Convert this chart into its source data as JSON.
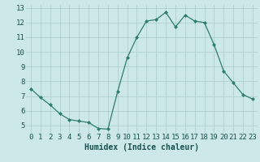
{
  "x": [
    0,
    1,
    2,
    3,
    4,
    5,
    6,
    7,
    8,
    9,
    10,
    11,
    12,
    13,
    14,
    15,
    16,
    17,
    18,
    19,
    20,
    21,
    22,
    23
  ],
  "y": [
    7.5,
    6.9,
    6.4,
    5.8,
    5.4,
    5.3,
    5.2,
    4.8,
    4.75,
    7.3,
    9.6,
    11.0,
    12.1,
    12.2,
    12.7,
    11.7,
    12.5,
    12.1,
    12.0,
    10.5,
    8.7,
    7.9,
    7.1,
    6.8
  ],
  "line_color": "#2e7d6e",
  "marker": "D",
  "marker_size": 2.0,
  "bg_color": "#cce8e8",
  "grid_color": "#aacccc",
  "xlabel": "Humidex (Indice chaleur)",
  "ylim": [
    4.5,
    13.2
  ],
  "xlim": [
    -0.5,
    23.5
  ],
  "xticks": [
    0,
    1,
    2,
    3,
    4,
    5,
    6,
    7,
    8,
    9,
    10,
    11,
    12,
    13,
    14,
    15,
    16,
    17,
    18,
    19,
    20,
    21,
    22,
    23
  ],
  "yticks": [
    5,
    6,
    7,
    8,
    9,
    10,
    11,
    12,
    13
  ],
  "tick_label_color": "#1a5050",
  "xlabel_color": "#1a5050",
  "xlabel_fontsize": 7.0,
  "tick_fontsize": 6.5
}
